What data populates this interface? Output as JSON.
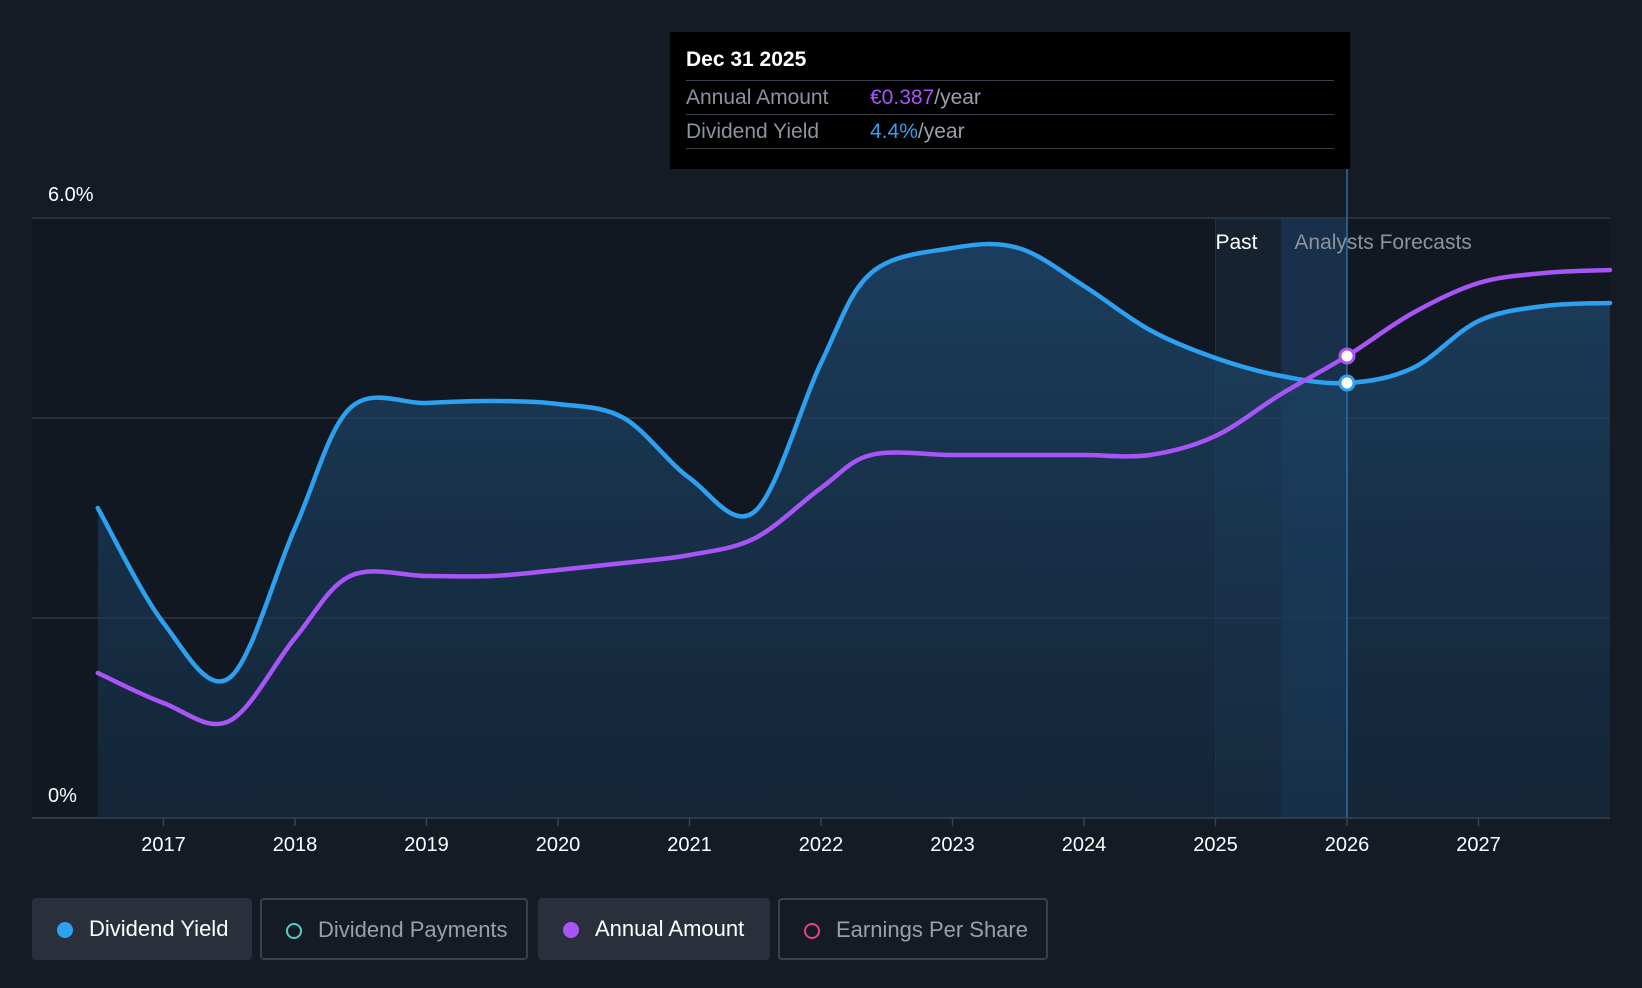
{
  "tooltip": {
    "date": "Dec 31 2025",
    "rows": [
      {
        "label": "Annual Amount",
        "value": "€0.387",
        "unit": "/year"
      },
      {
        "label": "Dividend Yield",
        "value": "4.4%",
        "unit": "/year"
      }
    ]
  },
  "legend": [
    {
      "label": "Dividend Yield",
      "color": "#2ea0f0",
      "filled": true,
      "active": true
    },
    {
      "label": "Dividend Payments",
      "color": "#4fd1c5",
      "filled": false,
      "active": false
    },
    {
      "label": "Annual Amount",
      "color": "#a855f7",
      "filled": true,
      "active": true
    },
    {
      "label": "Earnings Per Share",
      "color": "#e0457b",
      "filled": false,
      "active": false
    }
  ],
  "chart_data": {
    "type": "line",
    "y_tick_labels": [
      "6.0%",
      "0%"
    ],
    "ylim": [
      0,
      6.0
    ],
    "xlim": [
      2016.0,
      2028.0
    ],
    "x_tick_labels": [
      "2017",
      "2018",
      "2019",
      "2020",
      "2021",
      "2022",
      "2023",
      "2024",
      "2025",
      "2026",
      "2027"
    ],
    "x_ticks": [
      2017,
      2018,
      2019,
      2020,
      2021,
      2022,
      2023,
      2024,
      2025,
      2026,
      2027
    ],
    "region_labels": {
      "past": "Past",
      "forecast": "Analysts Forecasts"
    },
    "past_end": 2026.0,
    "series": [
      {
        "name": "Dividend Yield",
        "color": "#2ea0f0",
        "area": true,
        "x": [
          2016.5,
          2017.0,
          2017.5,
          2018.0,
          2018.42,
          2019.0,
          2019.5,
          2020.0,
          2020.5,
          2021.0,
          2021.5,
          2022.0,
          2022.38,
          2023.0,
          2023.5,
          2024.0,
          2024.5,
          2025.0,
          2025.5,
          2026.0,
          2026.5,
          2027.0,
          2027.5,
          2028.0
        ],
        "y": [
          3.1,
          1.95,
          1.4,
          2.9,
          4.1,
          4.15,
          4.17,
          4.14,
          4.0,
          3.4,
          3.07,
          4.55,
          5.45,
          5.7,
          5.7,
          5.32,
          4.88,
          4.6,
          4.42,
          4.35,
          4.5,
          4.97,
          5.12,
          5.15
        ]
      },
      {
        "name": "Annual Amount",
        "color": "#a855f7",
        "area": false,
        "x": [
          2016.5,
          2017.0,
          2017.5,
          2018.0,
          2018.42,
          2019.0,
          2019.5,
          2020.0,
          2020.5,
          2021.0,
          2021.5,
          2022.0,
          2022.38,
          2023.0,
          2023.5,
          2024.0,
          2024.5,
          2025.0,
          2025.5,
          2026.0,
          2026.5,
          2027.0,
          2027.5,
          2028.0
        ],
        "y": [
          1.45,
          1.15,
          0.97,
          1.8,
          2.42,
          2.42,
          2.42,
          2.48,
          2.55,
          2.63,
          2.8,
          3.3,
          3.63,
          3.63,
          3.63,
          3.63,
          3.63,
          3.82,
          4.24,
          4.62,
          5.05,
          5.35,
          5.45,
          5.48
        ]
      }
    ],
    "highlight": {
      "x": 2026.0,
      "series_values": [
        4.35,
        4.62
      ]
    }
  }
}
